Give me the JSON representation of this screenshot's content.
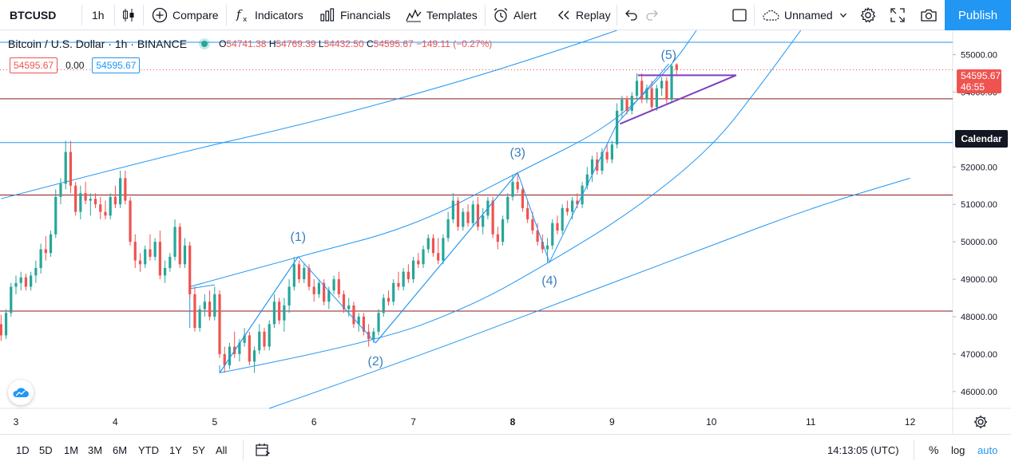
{
  "toolbar": {
    "symbol": "BTCUSD",
    "interval": "1h",
    "compare_label": "Compare",
    "indicators_label": "Indicators",
    "financials_label": "Financials",
    "templates_label": "Templates",
    "alert_label": "Alert",
    "replay_label": "Replay",
    "layout_name": "Unnamed",
    "publish_label": "Publish"
  },
  "legend": {
    "title": "Bitcoin / U.S. Dollar · 1h · BINANCE",
    "open_key": "O",
    "open": "54741.38",
    "high_key": "H",
    "high": "54769.39",
    "low_key": "L",
    "low": "54432.50",
    "close_key": "C",
    "close": "54595.67",
    "change": "−149.11 (−0.27%)"
  },
  "trade": {
    "sell_price": "54595.67",
    "spread": "0.00",
    "buy_price": "54595.67"
  },
  "price_axis": {
    "last_price": "54595.67",
    "countdown": "46:55",
    "calendar_label": "Calendar"
  },
  "colors": {
    "up": "#26a69a",
    "down": "#ef5350",
    "channel": "#2196f3",
    "horizontal_red": "#8b1a1a",
    "triangle": "#7e3fbf",
    "accent": "#2196f3"
  },
  "bottom_bar": {
    "ranges": [
      "1D",
      "5D",
      "1M",
      "3M",
      "6M",
      "YTD",
      "1Y",
      "5Y",
      "All"
    ],
    "time": "14:13:05 (UTC)",
    "percent_label": "%",
    "log_label": "log",
    "auto_label": "auto"
  },
  "chart_data": {
    "type": "candlestick",
    "symbol": "BTCUSD",
    "exchange": "BINANCE",
    "interval": "1h",
    "x_tick_labels": [
      "3",
      "4",
      "5",
      "6",
      "7",
      "8",
      "9",
      "10",
      "11",
      "12"
    ],
    "y_ticks": [
      46000,
      47000,
      48000,
      49000,
      50000,
      51000,
      52000,
      54000,
      55000
    ],
    "ylim": [
      45550,
      55650
    ],
    "grid": false,
    "wave_labels": [
      "(1)",
      "(2)",
      "(3)",
      "(4)",
      "(5)"
    ],
    "wave_points": [
      {
        "label": "(1)",
        "day": 5.84,
        "price": 49600
      },
      {
        "label": "(2)",
        "day": 6.62,
        "price": 47300
      },
      {
        "label": "(3)",
        "day": 8.05,
        "price": 51850
      },
      {
        "label": "(4)",
        "day": 8.37,
        "price": 49450
      },
      {
        "label": "(5)",
        "day": 9.57,
        "price": 54750
      }
    ],
    "wave_path": [
      {
        "day": 5.05,
        "price": 46500
      },
      {
        "day": 5.84,
        "price": 49600
      },
      {
        "day": 6.62,
        "price": 47300
      },
      {
        "day": 8.05,
        "price": 51850
      },
      {
        "day": 8.37,
        "price": 49450
      },
      {
        "day": 9.05,
        "price": 53150
      },
      {
        "day": 9.57,
        "price": 54750
      }
    ],
    "horizontal_levels": [
      {
        "price": 55330,
        "color": "channel"
      },
      {
        "price": 53820,
        "color": "horizontal_red"
      },
      {
        "price": 52650,
        "color": "channel"
      },
      {
        "price": 51250,
        "color": "horizontal_red"
      },
      {
        "price": 48150,
        "color": "horizontal_red"
      }
    ],
    "triangle": {
      "upper": [
        {
          "day": 9.26,
          "price": 54450
        },
        {
          "day": 10.25,
          "price": 54450
        }
      ],
      "lower": [
        {
          "day": 9.08,
          "price": 53150
        },
        {
          "day": 10.25,
          "price": 54450
        }
      ]
    },
    "candles": [
      {
        "day": 2.85,
        "o": 47800,
        "h": 48050,
        "l": 47350,
        "c": 47500
      },
      {
        "day": 2.9,
        "o": 47500,
        "h": 48200,
        "l": 47400,
        "c": 48100
      },
      {
        "day": 2.95,
        "o": 48100,
        "h": 48900,
        "l": 48000,
        "c": 48800
      },
      {
        "day": 3.0,
        "o": 48800,
        "h": 49100,
        "l": 48600,
        "c": 48900
      },
      {
        "day": 3.05,
        "o": 48900,
        "h": 49200,
        "l": 48700,
        "c": 49050
      },
      {
        "day": 3.1,
        "o": 49050,
        "h": 49150,
        "l": 48700,
        "c": 48800
      },
      {
        "day": 3.15,
        "o": 48800,
        "h": 49200,
        "l": 48700,
        "c": 49100
      },
      {
        "day": 3.2,
        "o": 49100,
        "h": 49500,
        "l": 48900,
        "c": 49300
      },
      {
        "day": 3.25,
        "o": 49300,
        "h": 49950,
        "l": 49150,
        "c": 49800
      },
      {
        "day": 3.3,
        "o": 49800,
        "h": 50150,
        "l": 49500,
        "c": 49700
      },
      {
        "day": 3.35,
        "o": 49700,
        "h": 50300,
        "l": 49600,
        "c": 50200
      },
      {
        "day": 3.4,
        "o": 50200,
        "h": 51400,
        "l": 50100,
        "c": 51200
      },
      {
        "day": 3.45,
        "o": 51200,
        "h": 51700,
        "l": 51000,
        "c": 51550
      },
      {
        "day": 3.5,
        "o": 51550,
        "h": 52700,
        "l": 51400,
        "c": 52400
      },
      {
        "day": 3.55,
        "o": 52400,
        "h": 52700,
        "l": 51300,
        "c": 51500
      },
      {
        "day": 3.6,
        "o": 51500,
        "h": 51600,
        "l": 50700,
        "c": 50800
      },
      {
        "day": 3.65,
        "o": 50800,
        "h": 51500,
        "l": 50600,
        "c": 51300
      },
      {
        "day": 3.7,
        "o": 51300,
        "h": 51600,
        "l": 51000,
        "c": 51100
      },
      {
        "day": 3.75,
        "o": 51100,
        "h": 51300,
        "l": 50700,
        "c": 51150
      },
      {
        "day": 3.8,
        "o": 51150,
        "h": 51300,
        "l": 50900,
        "c": 51000
      },
      {
        "day": 3.85,
        "o": 51000,
        "h": 51200,
        "l": 50600,
        "c": 50800
      },
      {
        "day": 3.9,
        "o": 50800,
        "h": 51100,
        "l": 50600,
        "c": 50700
      },
      {
        "day": 3.95,
        "o": 50700,
        "h": 51300,
        "l": 50600,
        "c": 51200
      },
      {
        "day": 4.0,
        "o": 51200,
        "h": 51500,
        "l": 50900,
        "c": 51000
      },
      {
        "day": 4.05,
        "o": 51000,
        "h": 51900,
        "l": 50900,
        "c": 51700
      },
      {
        "day": 4.1,
        "o": 51700,
        "h": 51900,
        "l": 51000,
        "c": 51100
      },
      {
        "day": 4.15,
        "o": 51100,
        "h": 51200,
        "l": 49900,
        "c": 50000
      },
      {
        "day": 4.2,
        "o": 50000,
        "h": 50200,
        "l": 49300,
        "c": 49500
      },
      {
        "day": 4.25,
        "o": 49500,
        "h": 49700,
        "l": 49200,
        "c": 49400
      },
      {
        "day": 4.3,
        "o": 49400,
        "h": 49900,
        "l": 49300,
        "c": 49800
      },
      {
        "day": 4.35,
        "o": 49800,
        "h": 50200,
        "l": 49500,
        "c": 49600
      },
      {
        "day": 4.4,
        "o": 49600,
        "h": 50100,
        "l": 49500,
        "c": 50000
      },
      {
        "day": 4.45,
        "o": 50000,
        "h": 50300,
        "l": 49000,
        "c": 49100
      },
      {
        "day": 4.5,
        "o": 49100,
        "h": 49500,
        "l": 48900,
        "c": 49300
      },
      {
        "day": 4.55,
        "o": 49300,
        "h": 49700,
        "l": 49200,
        "c": 49600
      },
      {
        "day": 4.6,
        "o": 49600,
        "h": 50600,
        "l": 49500,
        "c": 50400
      },
      {
        "day": 4.65,
        "o": 50400,
        "h": 50500,
        "l": 49300,
        "c": 49400
      },
      {
        "day": 4.7,
        "o": 49400,
        "h": 50100,
        "l": 49300,
        "c": 49900
      },
      {
        "day": 4.75,
        "o": 49900,
        "h": 50000,
        "l": 48500,
        "c": 48600
      },
      {
        "day": 4.8,
        "o": 48600,
        "h": 48800,
        "l": 47600,
        "c": 47700
      },
      {
        "day": 4.85,
        "o": 47700,
        "h": 48300,
        "l": 47600,
        "c": 48200
      },
      {
        "day": 4.9,
        "o": 48200,
        "h": 48600,
        "l": 48000,
        "c": 48400
      },
      {
        "day": 4.95,
        "o": 48400,
        "h": 48700,
        "l": 47900,
        "c": 48000
      },
      {
        "day": 5.0,
        "o": 48000,
        "h": 48800,
        "l": 47900,
        "c": 48600
      },
      {
        "day": 5.05,
        "o": 48600,
        "h": 48700,
        "l": 46900,
        "c": 47000
      },
      {
        "day": 5.1,
        "o": 47000,
        "h": 47200,
        "l": 46500,
        "c": 46700
      },
      {
        "day": 5.15,
        "o": 46700,
        "h": 47300,
        "l": 46600,
        "c": 47200
      },
      {
        "day": 5.2,
        "o": 47200,
        "h": 47600,
        "l": 46900,
        "c": 47000
      },
      {
        "day": 5.25,
        "o": 47000,
        "h": 47400,
        "l": 46800,
        "c": 47300
      },
      {
        "day": 5.3,
        "o": 47300,
        "h": 47700,
        "l": 47200,
        "c": 47500
      },
      {
        "day": 5.35,
        "o": 47500,
        "h": 47600,
        "l": 46700,
        "c": 46800
      },
      {
        "day": 5.4,
        "o": 46800,
        "h": 47200,
        "l": 46500,
        "c": 47100
      },
      {
        "day": 5.45,
        "o": 47100,
        "h": 47800,
        "l": 47000,
        "c": 47600
      },
      {
        "day": 5.5,
        "o": 47600,
        "h": 47700,
        "l": 47100,
        "c": 47200
      },
      {
        "day": 5.55,
        "o": 47200,
        "h": 47900,
        "l": 47100,
        "c": 47800
      },
      {
        "day": 5.6,
        "o": 47800,
        "h": 48600,
        "l": 47700,
        "c": 48400
      },
      {
        "day": 5.65,
        "o": 48400,
        "h": 48500,
        "l": 47800,
        "c": 47900
      },
      {
        "day": 5.7,
        "o": 47900,
        "h": 48500,
        "l": 47600,
        "c": 48300
      },
      {
        "day": 5.75,
        "o": 48300,
        "h": 49000,
        "l": 48100,
        "c": 48800
      },
      {
        "day": 5.8,
        "o": 48800,
        "h": 49600,
        "l": 48700,
        "c": 49400
      },
      {
        "day": 5.85,
        "o": 49400,
        "h": 49500,
        "l": 48900,
        "c": 49000
      },
      {
        "day": 5.9,
        "o": 49000,
        "h": 49400,
        "l": 48900,
        "c": 49300
      },
      {
        "day": 5.95,
        "o": 49300,
        "h": 49400,
        "l": 48700,
        "c": 48800
      },
      {
        "day": 6.0,
        "o": 48800,
        "h": 49000,
        "l": 48400,
        "c": 48600
      },
      {
        "day": 6.05,
        "o": 48600,
        "h": 49000,
        "l": 48500,
        "c": 48900
      },
      {
        "day": 6.1,
        "o": 48900,
        "h": 49000,
        "l": 48300,
        "c": 48400
      },
      {
        "day": 6.15,
        "o": 48400,
        "h": 48800,
        "l": 48200,
        "c": 48700
      },
      {
        "day": 6.2,
        "o": 48700,
        "h": 49100,
        "l": 48600,
        "c": 49000
      },
      {
        "day": 6.25,
        "o": 49000,
        "h": 49200,
        "l": 48500,
        "c": 48600
      },
      {
        "day": 6.3,
        "o": 48600,
        "h": 48700,
        "l": 48100,
        "c": 48200
      },
      {
        "day": 6.35,
        "o": 48200,
        "h": 48500,
        "l": 48000,
        "c": 48300
      },
      {
        "day": 6.4,
        "o": 48300,
        "h": 48400,
        "l": 47700,
        "c": 47800
      },
      {
        "day": 6.45,
        "o": 47800,
        "h": 48100,
        "l": 47600,
        "c": 48000
      },
      {
        "day": 6.5,
        "o": 48000,
        "h": 48100,
        "l": 47500,
        "c": 47600
      },
      {
        "day": 6.55,
        "o": 47600,
        "h": 47800,
        "l": 47200,
        "c": 47400
      },
      {
        "day": 6.6,
        "o": 47400,
        "h": 47700,
        "l": 47300,
        "c": 47600
      },
      {
        "day": 6.65,
        "o": 47600,
        "h": 48200,
        "l": 47500,
        "c": 48100
      },
      {
        "day": 6.7,
        "o": 48100,
        "h": 48600,
        "l": 48000,
        "c": 48500
      },
      {
        "day": 6.75,
        "o": 48500,
        "h": 48700,
        "l": 48300,
        "c": 48400
      },
      {
        "day": 6.8,
        "o": 48400,
        "h": 49000,
        "l": 48300,
        "c": 48900
      },
      {
        "day": 6.85,
        "o": 48900,
        "h": 49200,
        "l": 48700,
        "c": 48800
      },
      {
        "day": 6.9,
        "o": 48800,
        "h": 49300,
        "l": 48700,
        "c": 49200
      },
      {
        "day": 6.95,
        "o": 49200,
        "h": 49400,
        "l": 48900,
        "c": 49000
      },
      {
        "day": 7.0,
        "o": 49000,
        "h": 49600,
        "l": 48900,
        "c": 49500
      },
      {
        "day": 7.05,
        "o": 49500,
        "h": 49700,
        "l": 49300,
        "c": 49400
      },
      {
        "day": 7.1,
        "o": 49400,
        "h": 49900,
        "l": 49300,
        "c": 49800
      },
      {
        "day": 7.15,
        "o": 49800,
        "h": 50200,
        "l": 49700,
        "c": 50100
      },
      {
        "day": 7.2,
        "o": 50100,
        "h": 50200,
        "l": 49600,
        "c": 49700
      },
      {
        "day": 7.25,
        "o": 49700,
        "h": 50100,
        "l": 49400,
        "c": 49500
      },
      {
        "day": 7.3,
        "o": 49500,
        "h": 50200,
        "l": 49400,
        "c": 50100
      },
      {
        "day": 7.35,
        "o": 50100,
        "h": 50800,
        "l": 50000,
        "c": 50600
      },
      {
        "day": 7.4,
        "o": 50600,
        "h": 51300,
        "l": 50500,
        "c": 51100
      },
      {
        "day": 7.45,
        "o": 51100,
        "h": 51200,
        "l": 50300,
        "c": 50400
      },
      {
        "day": 7.5,
        "o": 50400,
        "h": 50900,
        "l": 50300,
        "c": 50800
      },
      {
        "day": 7.55,
        "o": 50800,
        "h": 51000,
        "l": 50400,
        "c": 50500
      },
      {
        "day": 7.6,
        "o": 50500,
        "h": 51100,
        "l": 50400,
        "c": 51000
      },
      {
        "day": 7.65,
        "o": 51000,
        "h": 51200,
        "l": 50300,
        "c": 50400
      },
      {
        "day": 7.7,
        "o": 50400,
        "h": 50900,
        "l": 50200,
        "c": 50700
      },
      {
        "day": 7.75,
        "o": 50700,
        "h": 51200,
        "l": 50600,
        "c": 51100
      },
      {
        "day": 7.8,
        "o": 51100,
        "h": 51200,
        "l": 50100,
        "c": 50200
      },
      {
        "day": 7.85,
        "o": 50200,
        "h": 50400,
        "l": 49800,
        "c": 50000
      },
      {
        "day": 7.9,
        "o": 50000,
        "h": 50700,
        "l": 49900,
        "c": 50600
      },
      {
        "day": 7.95,
        "o": 50600,
        "h": 51300,
        "l": 50500,
        "c": 51200
      },
      {
        "day": 8.0,
        "o": 51200,
        "h": 51800,
        "l": 51100,
        "c": 51600
      },
      {
        "day": 8.05,
        "o": 51600,
        "h": 51850,
        "l": 51300,
        "c": 51400
      },
      {
        "day": 8.1,
        "o": 51400,
        "h": 51500,
        "l": 50800,
        "c": 50900
      },
      {
        "day": 8.15,
        "o": 50900,
        "h": 51100,
        "l": 50500,
        "c": 50600
      },
      {
        "day": 8.2,
        "o": 50600,
        "h": 50800,
        "l": 50200,
        "c": 50300
      },
      {
        "day": 8.25,
        "o": 50300,
        "h": 50500,
        "l": 49900,
        "c": 50000
      },
      {
        "day": 8.3,
        "o": 50000,
        "h": 50200,
        "l": 49700,
        "c": 49800
      },
      {
        "day": 8.35,
        "o": 49800,
        "h": 50100,
        "l": 49450,
        "c": 49900
      },
      {
        "day": 8.4,
        "o": 49900,
        "h": 50600,
        "l": 49800,
        "c": 50500
      },
      {
        "day": 8.45,
        "o": 50500,
        "h": 50700,
        "l": 50200,
        "c": 50300
      },
      {
        "day": 8.5,
        "o": 50300,
        "h": 51000,
        "l": 50200,
        "c": 50900
      },
      {
        "day": 8.55,
        "o": 50900,
        "h": 51100,
        "l": 50700,
        "c": 50800
      },
      {
        "day": 8.6,
        "o": 50800,
        "h": 51200,
        "l": 50600,
        "c": 51100
      },
      {
        "day": 8.65,
        "o": 51100,
        "h": 51300,
        "l": 50900,
        "c": 51000
      },
      {
        "day": 8.7,
        "o": 51000,
        "h": 51600,
        "l": 50900,
        "c": 51500
      },
      {
        "day": 8.75,
        "o": 51500,
        "h": 52000,
        "l": 51400,
        "c": 51800
      },
      {
        "day": 8.8,
        "o": 51800,
        "h": 52300,
        "l": 51600,
        "c": 52200
      },
      {
        "day": 8.85,
        "o": 52200,
        "h": 52400,
        "l": 51800,
        "c": 51900
      },
      {
        "day": 8.9,
        "o": 51900,
        "h": 52500,
        "l": 51800,
        "c": 52400
      },
      {
        "day": 8.95,
        "o": 52400,
        "h": 52600,
        "l": 52100,
        "c": 52200
      },
      {
        "day": 9.0,
        "o": 52200,
        "h": 52700,
        "l": 52100,
        "c": 52600
      },
      {
        "day": 9.05,
        "o": 52600,
        "h": 53700,
        "l": 52500,
        "c": 53500
      },
      {
        "day": 9.1,
        "o": 53500,
        "h": 53900,
        "l": 53300,
        "c": 53800
      },
      {
        "day": 9.15,
        "o": 53800,
        "h": 53900,
        "l": 53400,
        "c": 53500
      },
      {
        "day": 9.2,
        "o": 53500,
        "h": 54000,
        "l": 53400,
        "c": 53900
      },
      {
        "day": 9.25,
        "o": 53900,
        "h": 54500,
        "l": 53800,
        "c": 54300
      },
      {
        "day": 9.3,
        "o": 54300,
        "h": 54500,
        "l": 53700,
        "c": 53800
      },
      {
        "day": 9.35,
        "o": 53800,
        "h": 54200,
        "l": 53700,
        "c": 54100
      },
      {
        "day": 9.4,
        "o": 54100,
        "h": 54300,
        "l": 53500,
        "c": 53600
      },
      {
        "day": 9.45,
        "o": 53600,
        "h": 54200,
        "l": 53500,
        "c": 54100
      },
      {
        "day": 9.5,
        "o": 54100,
        "h": 54400,
        "l": 53900,
        "c": 54300
      },
      {
        "day": 9.55,
        "o": 54300,
        "h": 54400,
        "l": 53700,
        "c": 53800
      },
      {
        "day": 9.6,
        "o": 53800,
        "h": 54750,
        "l": 53700,
        "c": 54700
      },
      {
        "day": 9.65,
        "o": 54741,
        "h": 54769,
        "l": 54432,
        "c": 54596
      }
    ]
  }
}
